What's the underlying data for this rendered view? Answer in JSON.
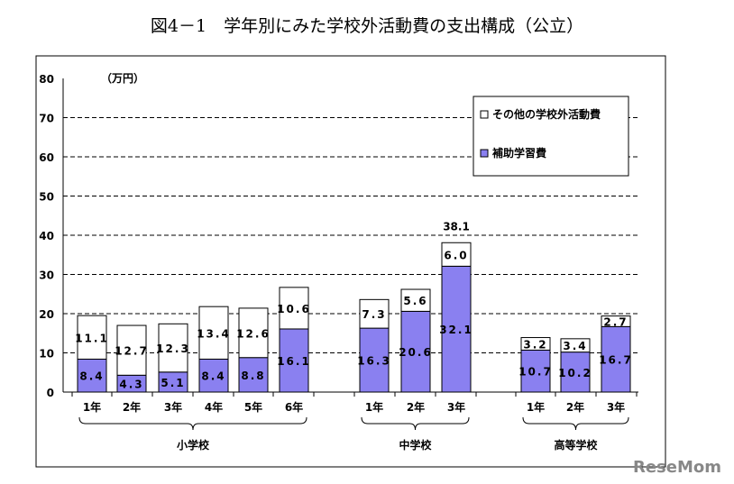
{
  "chart_data": {
    "type": "bar",
    "stacked": true,
    "title": "図4－1　学年別にみた学校外活動費の支出構成（公立）",
    "unit_label": "（万円）",
    "ylim": [
      0,
      80
    ],
    "yticks": [
      0,
      10,
      20,
      30,
      40,
      50,
      60,
      70,
      80
    ],
    "grid": true,
    "legend_position": "top-right",
    "groups": [
      {
        "label": "小学校",
        "categories": [
          "1年",
          "2年",
          "3年",
          "4年",
          "5年",
          "6年"
        ]
      },
      {
        "label": "中学校",
        "categories": [
          "1年",
          "2年",
          "3年"
        ]
      },
      {
        "label": "高等学校",
        "categories": [
          "1年",
          "2年",
          "3年"
        ]
      }
    ],
    "series": [
      {
        "name": "補助学習費",
        "color": "#8a80f0",
        "values": [
          8.4,
          4.3,
          5.1,
          8.4,
          8.8,
          16.1,
          16.3,
          20.6,
          32.1,
          10.7,
          10.2,
          16.7
        ]
      },
      {
        "name": "その他の学校外活動費",
        "color": "#ffffff",
        "values": [
          11.1,
          12.7,
          12.3,
          13.4,
          12.6,
          10.6,
          7.3,
          5.6,
          6.0,
          3.2,
          3.4,
          2.7
        ]
      }
    ],
    "annotations": [
      {
        "category_index": 8,
        "text": "38.1"
      }
    ]
  },
  "watermark": "ReseMom"
}
